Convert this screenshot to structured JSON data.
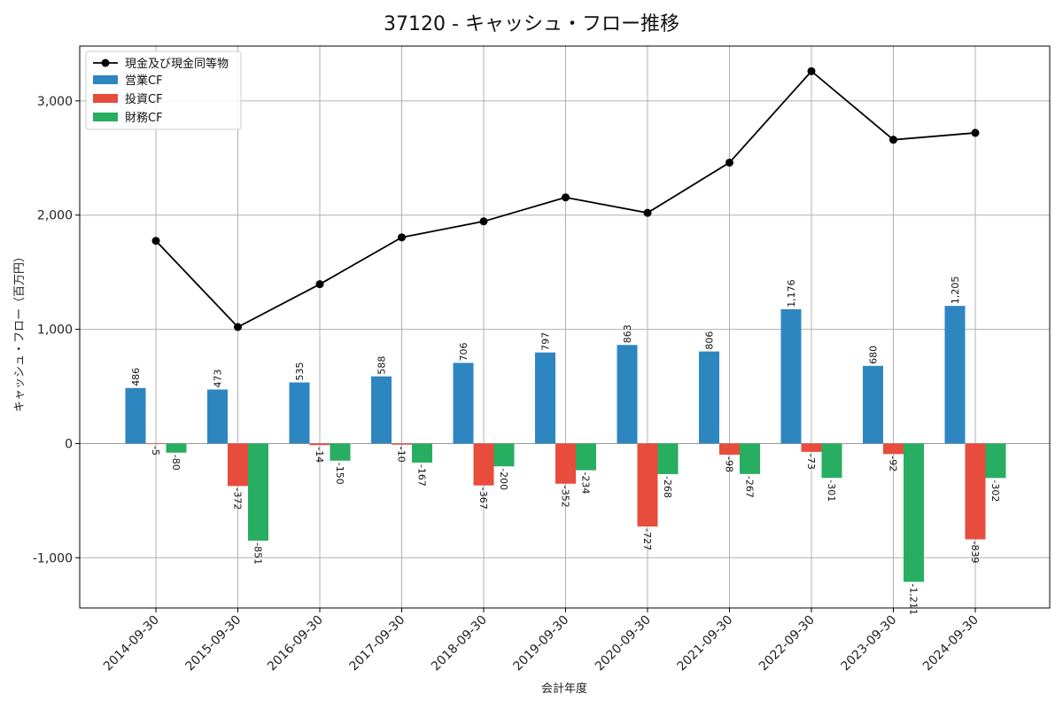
{
  "chart_data": {
    "type": "bar",
    "title": "37120 - キャッシュ・フロー推移",
    "xlabel": "会計年度",
    "ylabel": "キャッシュ・フロー（百万円）",
    "categories": [
      "2014-09-30",
      "2015-09-30",
      "2016-09-30",
      "2017-09-30",
      "2018-09-30",
      "2019-09-30",
      "2020-09-30",
      "2021-09-30",
      "2022-09-30",
      "2023-09-30",
      "2024-09-30"
    ],
    "series": [
      {
        "name": "営業CF",
        "color": "#2e86c1",
        "values": [
          486,
          473,
          535,
          588,
          706,
          797,
          863,
          806,
          1176,
          680,
          1205
        ]
      },
      {
        "name": "投資CF",
        "color": "#e74c3c",
        "values": [
          -5,
          -372,
          -14,
          -10,
          -367,
          -352,
          -727,
          -98,
          -73,
          -92,
          -839
        ]
      },
      {
        "name": "財務CF",
        "color": "#27ae60",
        "values": [
          -80,
          -851,
          -150,
          -167,
          -200,
          -234,
          -268,
          -267,
          -301,
          -1211,
          -302
        ]
      }
    ],
    "line_series": {
      "name": "現金及び現金同等物",
      "color": "#000000",
      "values": [
        1775,
        1020,
        1395,
        1805,
        1945,
        2155,
        2020,
        2460,
        3260,
        2660,
        2720
      ]
    },
    "data_labels": {
      "営業CF": [
        "486",
        "473",
        "535",
        "588",
        "706",
        "797",
        "863",
        "806",
        "1,176",
        "680",
        "1,205"
      ],
      "投資CF": [
        "-5",
        "-372",
        "-14",
        "-10",
        "-367",
        "-352",
        "-727",
        "-98",
        "-73",
        "-92",
        "-839"
      ],
      "財務CF": [
        "-80",
        "-851",
        "-150",
        "-167",
        "-200",
        "-234",
        "-268",
        "-267",
        "-301",
        "-1,211",
        "-302"
      ]
    },
    "yticks": [
      {
        "value": -1000,
        "label": "-1,000"
      },
      {
        "value": 0,
        "label": "0"
      },
      {
        "value": 1000,
        "label": "1,000"
      },
      {
        "value": 2000,
        "label": "2,000"
      },
      {
        "value": 3000,
        "label": "3,000"
      }
    ],
    "ylim": [
      -1440,
      3480
    ],
    "grid": true,
    "legend_position": "top-left"
  }
}
